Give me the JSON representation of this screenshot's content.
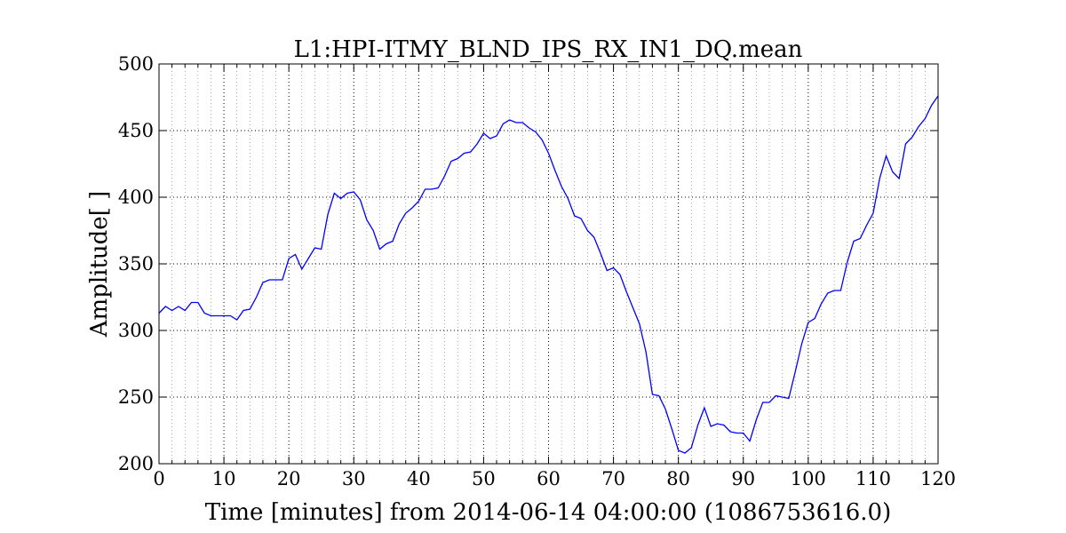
{
  "chart_data": {
    "type": "line",
    "title": "L1:HPI-ITMY_BLND_IPS_RX_IN1_DQ.mean",
    "xlabel": "Time [minutes] from 2014-06-14 04:00:00 (1086753616.0)",
    "ylabel": "Amplitude[ ]",
    "xlim": [
      0,
      120
    ],
    "ylim": [
      200,
      500
    ],
    "xticks": [
      0,
      10,
      20,
      30,
      40,
      50,
      60,
      70,
      80,
      90,
      100,
      110,
      120
    ],
    "yticks": [
      200,
      250,
      300,
      350,
      400,
      450,
      500
    ],
    "x_minor_step": 2,
    "grid": true,
    "series": [
      {
        "color": "#0000ff",
        "x": [
          0,
          1,
          2,
          3,
          4,
          5,
          6,
          7,
          8,
          9,
          10,
          11,
          12,
          13,
          14,
          15,
          16,
          17,
          18,
          19,
          20,
          21,
          22,
          23,
          24,
          25,
          26,
          27,
          28,
          29,
          30,
          31,
          32,
          33,
          34,
          35,
          36,
          37,
          38,
          39,
          40,
          41,
          42,
          43,
          44,
          45,
          46,
          47,
          48,
          49,
          50,
          51,
          52,
          53,
          54,
          55,
          56,
          57,
          58,
          59,
          60,
          61,
          62,
          63,
          64,
          65,
          66,
          67,
          68,
          69,
          70,
          71,
          72,
          73,
          74,
          75,
          76,
          77,
          78,
          79,
          80,
          81,
          82,
          83,
          84,
          85,
          86,
          87,
          88,
          89,
          90,
          91,
          92,
          93,
          94,
          95,
          96,
          97,
          98,
          99,
          100,
          101,
          102,
          103,
          104,
          105,
          106,
          107,
          108,
          109,
          110,
          111,
          112,
          113,
          114,
          115,
          116,
          117,
          118,
          119,
          120
        ],
        "y": [
          313,
          318,
          315,
          318,
          315,
          321,
          321,
          313,
          311,
          311,
          311,
          311,
          308,
          315,
          316,
          325,
          336,
          338,
          338,
          338,
          354,
          357,
          346,
          354,
          362,
          361,
          387,
          403,
          399,
          403,
          404,
          398,
          383,
          375,
          361,
          365,
          367,
          380,
          388,
          392,
          397,
          406,
          406,
          407,
          416,
          427,
          429,
          433,
          434,
          440,
          448,
          444,
          446,
          455,
          458,
          456,
          456,
          452,
          449,
          443,
          433,
          420,
          408,
          399,
          386,
          384,
          375,
          370,
          358,
          345,
          347,
          342,
          329,
          317,
          305,
          284,
          252,
          251,
          241,
          226,
          210,
          208,
          212,
          229,
          242,
          228,
          230,
          229,
          224,
          223,
          223,
          217,
          233,
          246,
          246,
          251,
          250,
          249,
          269,
          290,
          306,
          309,
          320,
          328,
          330,
          330,
          351,
          367,
          369,
          379,
          388,
          414,
          431,
          419,
          414,
          440,
          445,
          453,
          459,
          469,
          476
        ]
      }
    ]
  }
}
